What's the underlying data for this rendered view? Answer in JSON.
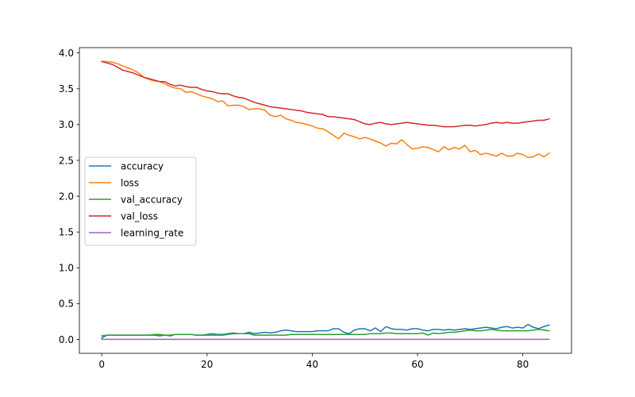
{
  "chart_data": {
    "type": "line",
    "title": "",
    "xlabel": "",
    "ylabel": "",
    "xlim": [
      -4.25,
      89.25
    ],
    "ylim": [
      -0.194,
      4.074
    ],
    "xticks": [
      0,
      20,
      40,
      60,
      80
    ],
    "xtick_labels": [
      "0",
      "20",
      "40",
      "60",
      "80"
    ],
    "yticks": [
      0,
      0.5,
      1,
      1.5,
      2,
      2.5,
      3,
      3.5,
      4
    ],
    "ytick_labels": [
      "0.0",
      "0.5",
      "1.0",
      "1.5",
      "2.0",
      "2.5",
      "3.0",
      "3.5",
      "4.0"
    ],
    "grid": false,
    "legend_position": "center-left",
    "x": [
      0,
      1,
      2,
      3,
      4,
      5,
      6,
      7,
      8,
      9,
      10,
      11,
      12,
      13,
      14,
      15,
      16,
      17,
      18,
      19,
      20,
      21,
      22,
      23,
      24,
      25,
      26,
      27,
      28,
      29,
      30,
      31,
      32,
      33,
      34,
      35,
      36,
      37,
      38,
      39,
      40,
      41,
      42,
      43,
      44,
      45,
      46,
      47,
      48,
      49,
      50,
      51,
      52,
      53,
      54,
      55,
      56,
      57,
      58,
      59,
      60,
      61,
      62,
      63,
      64,
      65,
      66,
      67,
      68,
      69,
      70,
      71,
      72,
      73,
      74,
      75,
      76,
      77,
      78,
      79,
      80,
      81,
      82,
      83,
      84,
      85
    ],
    "series": [
      {
        "name": "accuracy",
        "color": "#1f77b4",
        "values": [
          0.02,
          0.06,
          0.06,
          0.06,
          0.06,
          0.06,
          0.06,
          0.06,
          0.06,
          0.06,
          0.06,
          0.05,
          0.06,
          0.05,
          0.07,
          0.07,
          0.07,
          0.07,
          0.06,
          0.06,
          0.07,
          0.08,
          0.07,
          0.07,
          0.08,
          0.09,
          0.08,
          0.08,
          0.1,
          0.08,
          0.09,
          0.1,
          0.09,
          0.1,
          0.12,
          0.13,
          0.12,
          0.11,
          0.11,
          0.11,
          0.11,
          0.12,
          0.12,
          0.12,
          0.15,
          0.15,
          0.1,
          0.08,
          0.13,
          0.15,
          0.15,
          0.12,
          0.16,
          0.11,
          0.18,
          0.15,
          0.14,
          0.14,
          0.13,
          0.15,
          0.15,
          0.13,
          0.12,
          0.14,
          0.14,
          0.13,
          0.14,
          0.13,
          0.14,
          0.15,
          0.14,
          0.15,
          0.16,
          0.17,
          0.16,
          0.15,
          0.17,
          0.18,
          0.16,
          0.17,
          0.16,
          0.21,
          0.17,
          0.15,
          0.18,
          0.2
        ]
      },
      {
        "name": "loss",
        "color": "#ff7f0e",
        "values": [
          3.88,
          3.88,
          3.87,
          3.85,
          3.82,
          3.79,
          3.76,
          3.72,
          3.66,
          3.63,
          3.61,
          3.6,
          3.57,
          3.53,
          3.51,
          3.5,
          3.45,
          3.46,
          3.43,
          3.4,
          3.38,
          3.36,
          3.32,
          3.33,
          3.26,
          3.27,
          3.27,
          3.25,
          3.21,
          3.22,
          3.22,
          3.2,
          3.13,
          3.11,
          3.13,
          3.08,
          3.06,
          3.03,
          3.02,
          3.0,
          2.98,
          2.95,
          2.94,
          2.9,
          2.85,
          2.8,
          2.88,
          2.85,
          2.83,
          2.8,
          2.82,
          2.8,
          2.77,
          2.74,
          2.7,
          2.74,
          2.73,
          2.79,
          2.72,
          2.66,
          2.67,
          2.69,
          2.68,
          2.65,
          2.62,
          2.69,
          2.65,
          2.68,
          2.66,
          2.71,
          2.62,
          2.64,
          2.58,
          2.6,
          2.58,
          2.56,
          2.6,
          2.56,
          2.56,
          2.6,
          2.58,
          2.54,
          2.55,
          2.59,
          2.55,
          2.6
        ]
      },
      {
        "name": "val_accuracy",
        "color": "#2ca02c",
        "values": [
          0.05,
          0.06,
          0.06,
          0.06,
          0.06,
          0.06,
          0.06,
          0.06,
          0.06,
          0.06,
          0.07,
          0.07,
          0.06,
          0.06,
          0.07,
          0.07,
          0.07,
          0.07,
          0.06,
          0.06,
          0.06,
          0.06,
          0.06,
          0.06,
          0.07,
          0.08,
          0.08,
          0.08,
          0.08,
          0.06,
          0.06,
          0.06,
          0.06,
          0.06,
          0.06,
          0.06,
          0.07,
          0.07,
          0.07,
          0.07,
          0.07,
          0.07,
          0.07,
          0.07,
          0.07,
          0.07,
          0.07,
          0.07,
          0.07,
          0.07,
          0.07,
          0.08,
          0.08,
          0.08,
          0.09,
          0.09,
          0.08,
          0.08,
          0.08,
          0.08,
          0.08,
          0.09,
          0.06,
          0.09,
          0.08,
          0.09,
          0.1,
          0.1,
          0.11,
          0.12,
          0.13,
          0.12,
          0.12,
          0.13,
          0.14,
          0.13,
          0.12,
          0.12,
          0.12,
          0.12,
          0.12,
          0.12,
          0.13,
          0.14,
          0.13,
          0.12
        ]
      },
      {
        "name": "val_loss",
        "color": "#d62728",
        "values": [
          3.88,
          3.86,
          3.84,
          3.8,
          3.76,
          3.74,
          3.72,
          3.69,
          3.66,
          3.64,
          3.62,
          3.6,
          3.6,
          3.56,
          3.54,
          3.55,
          3.53,
          3.52,
          3.52,
          3.49,
          3.47,
          3.46,
          3.44,
          3.43,
          3.43,
          3.4,
          3.38,
          3.37,
          3.34,
          3.31,
          3.29,
          3.27,
          3.25,
          3.24,
          3.23,
          3.22,
          3.21,
          3.2,
          3.19,
          3.17,
          3.16,
          3.15,
          3.14,
          3.11,
          3.11,
          3.1,
          3.09,
          3.08,
          3.07,
          3.04,
          3.01,
          3.0,
          3.02,
          3.03,
          3.01,
          3.0,
          3.01,
          3.02,
          3.03,
          3.02,
          3.01,
          3.0,
          2.99,
          2.99,
          2.98,
          2.97,
          2.97,
          2.97,
          2.98,
          2.99,
          2.99,
          2.98,
          2.99,
          3.0,
          3.02,
          3.03,
          3.02,
          3.03,
          3.02,
          3.02,
          3.03,
          3.04,
          3.05,
          3.06,
          3.06,
          3.08
        ]
      },
      {
        "name": "learning_rate",
        "color": "#9467bd",
        "values": [
          0.001,
          0.001,
          0.001,
          0.001,
          0.001,
          0.001,
          0.001,
          0.001,
          0.001,
          0.001,
          0.001,
          0.001,
          0.001,
          0.001,
          0.001,
          0.001,
          0.001,
          0.001,
          0.001,
          0.001,
          0.001,
          0.001,
          0.001,
          0.001,
          0.001,
          0.001,
          0.001,
          0.001,
          0.001,
          0.001,
          0.001,
          0.001,
          0.001,
          0.001,
          0.001,
          0.001,
          0.001,
          0.001,
          0.001,
          0.001,
          0.001,
          0.001,
          0.001,
          0.001,
          0.001,
          0.001,
          0.001,
          0.001,
          0.001,
          0.001,
          0.001,
          0.001,
          0.001,
          0.001,
          0.001,
          0.001,
          0.001,
          0.001,
          0.001,
          0.001,
          0.001,
          0.001,
          0.001,
          0.001,
          0.001,
          0.001,
          0.001,
          0.001,
          0.001,
          0.001,
          0.001,
          0.001,
          0.001,
          0.001,
          0.001,
          0.001,
          0.001,
          0.001,
          0.001,
          0.001,
          0.001,
          0.001,
          0.001,
          0.001,
          0.001,
          0.001
        ]
      }
    ]
  }
}
